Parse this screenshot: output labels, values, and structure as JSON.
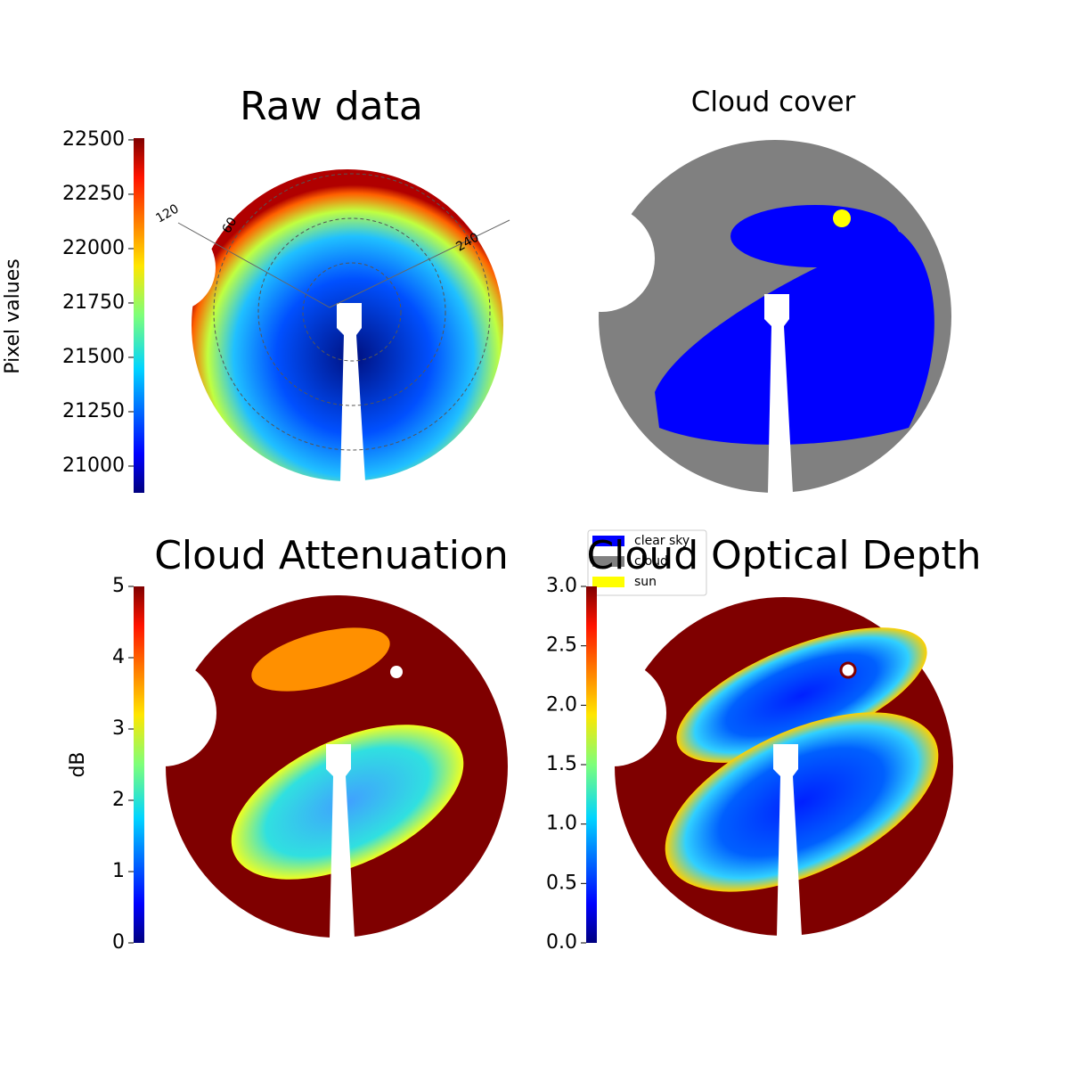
{
  "chart_data": [
    {
      "type": "image",
      "title": "Raw data",
      "colorbar_label": "Pixel values",
      "ylim": [
        20877,
        22508
      ],
      "yticks": [
        21000,
        21250,
        21500,
        21750,
        22000,
        22250,
        22500
      ],
      "annotations": [
        "120",
        "60",
        "240"
      ]
    },
    {
      "type": "image",
      "title": "Cloud cover",
      "legend": [
        {
          "name": "clear sky",
          "color": "#0000ff"
        },
        {
          "name": "cloud",
          "color": "#808080"
        },
        {
          "name": "sun",
          "color": "#ffff00"
        }
      ]
    },
    {
      "type": "image",
      "title": "Cloud Attenuation",
      "colorbar_label": "dB",
      "ylim": [
        0,
        5
      ],
      "yticks": [
        0,
        1,
        2,
        3,
        4,
        5
      ]
    },
    {
      "type": "image",
      "title": "Cloud Optical Depth",
      "ylim": [
        0,
        3
      ],
      "yticks": [
        {
          "value": 0,
          "label": "0.0"
        },
        0.5,
        {
          "value": 1,
          "label": "1.0"
        },
        1.5,
        {
          "value": 2,
          "label": "2.0"
        },
        2.5,
        {
          "value": 3,
          "label": "3.0"
        }
      ]
    }
  ]
}
